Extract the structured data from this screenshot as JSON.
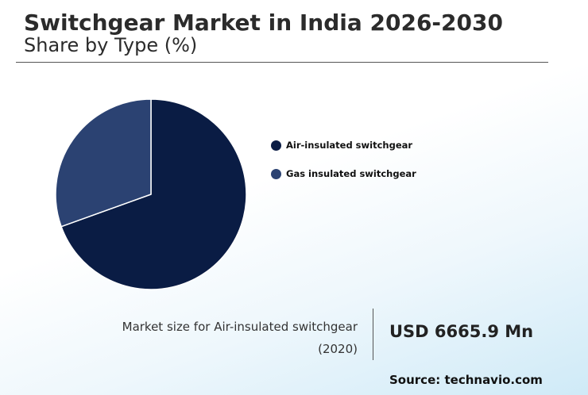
{
  "header": {
    "title": "Switchgear Market in India 2026-2030",
    "subtitle": "Share by Type (%)"
  },
  "chart_data": {
    "type": "pie",
    "categories": [
      "Air-insulated switchgear",
      "Gas insulated switchgear"
    ],
    "values": [
      69.5,
      30.5
    ],
    "colors": [
      "#0a1c44",
      "#2b4272"
    ],
    "legend_position": "right",
    "start_angle_deg": 0,
    "direction": "clockwise"
  },
  "summary": {
    "market_size_label_line1": "Market size for Air-insulated switchgear",
    "market_size_label_line2": "(2020)",
    "market_size_value": "USD 6665.9 Mn"
  },
  "footer": {
    "source": "Source: technavio.com"
  }
}
